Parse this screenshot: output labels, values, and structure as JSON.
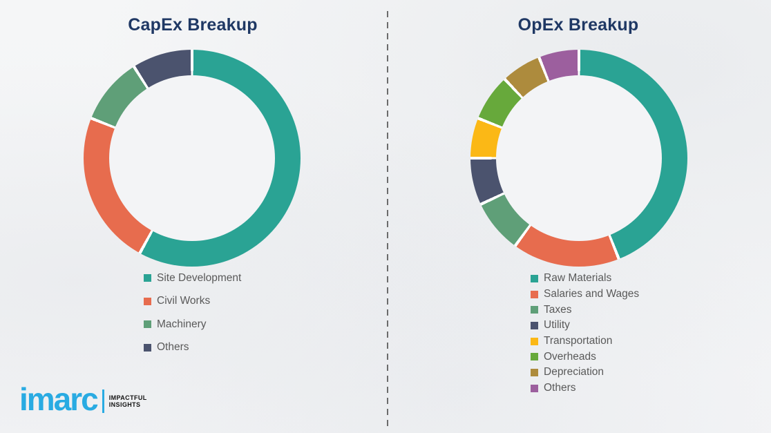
{
  "chart_data": [
    {
      "type": "pie",
      "subtype": "donut",
      "title": "CapEx Breakup",
      "legend_position": "bottom",
      "labels": [
        "Site Development",
        "Civil Works",
        "Machinery",
        "Others"
      ],
      "values": [
        58,
        23,
        10,
        9
      ],
      "values_note": "approximate percent share, no data labels shown",
      "colors": [
        "#2aa394",
        "#e76c4e",
        "#5f9f78",
        "#4b536e"
      ]
    },
    {
      "type": "pie",
      "subtype": "donut",
      "title": "OpEx Breakup",
      "legend_position": "bottom",
      "labels": [
        "Raw Materials",
        "Salaries and Wages",
        "Taxes",
        "Utility",
        "Transportation",
        "Overheads",
        "Depreciation",
        "Others"
      ],
      "values": [
        44,
        16,
        8,
        7,
        6,
        7,
        6,
        6
      ],
      "values_note": "approximate percent share, no data labels shown",
      "colors": [
        "#2aa394",
        "#e76c4e",
        "#5f9f78",
        "#4b536e",
        "#fbb816",
        "#67a93b",
        "#ad8b3d",
        "#9c5f9e"
      ]
    }
  ],
  "logo": {
    "brand": "imarc",
    "tagline_line1": "IMPACTFUL",
    "tagline_line2": "INSIGHTS",
    "brand_color": "#29abe2"
  },
  "style": {
    "title_color": "#1f3864",
    "legend_text_color": "#595959",
    "background_color": "#f3f4f6",
    "divider_color": "#6b6b6b"
  }
}
